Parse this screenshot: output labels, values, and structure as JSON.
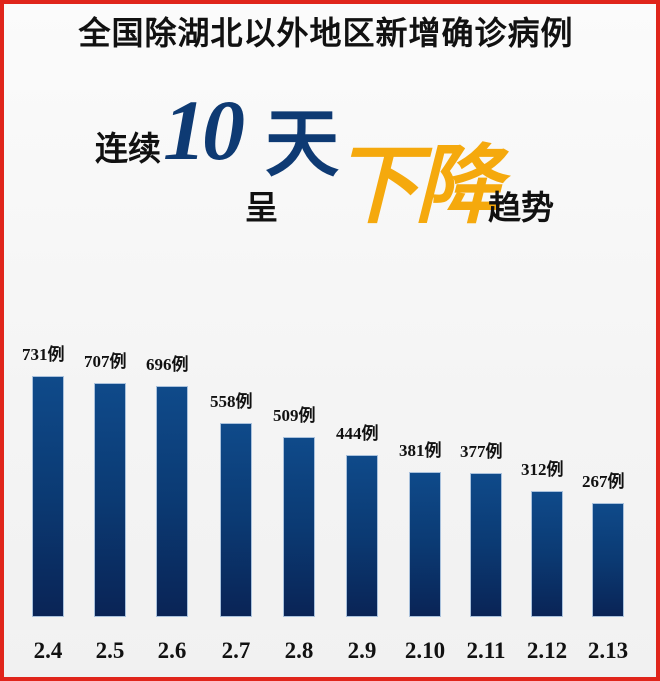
{
  "header": {
    "title": "全国除湖北以外地区新增确诊病例",
    "subtitle_part1": "连续",
    "subtitle_number": "10",
    "subtitle_day": "天",
    "subtitle_part2": "呈",
    "subtitle_highlight": "下降",
    "subtitle_part3": "趋势"
  },
  "colors": {
    "border": "#e0251b",
    "bar": "#0b3a73",
    "number_accent": "#0e3a73",
    "highlight": "#f5a90d"
  },
  "chart_data": {
    "type": "bar",
    "title": "全国除湖北以外地区新增确诊病例 连续10天呈下降趋势",
    "xlabel": "",
    "ylabel": "",
    "unit": "例",
    "categories": [
      "2.4",
      "2.5",
      "2.6",
      "2.7",
      "2.8",
      "2.9",
      "2.10",
      "2.11",
      "2.12",
      "2.13"
    ],
    "values": [
      731,
      707,
      696,
      558,
      509,
      444,
      381,
      377,
      312,
      267
    ],
    "value_labels": [
      "731例",
      "707例",
      "696例",
      "558例",
      "509例",
      "444例",
      "381例",
      "377例",
      "312例",
      "267例"
    ],
    "grid": false,
    "legend": null
  }
}
